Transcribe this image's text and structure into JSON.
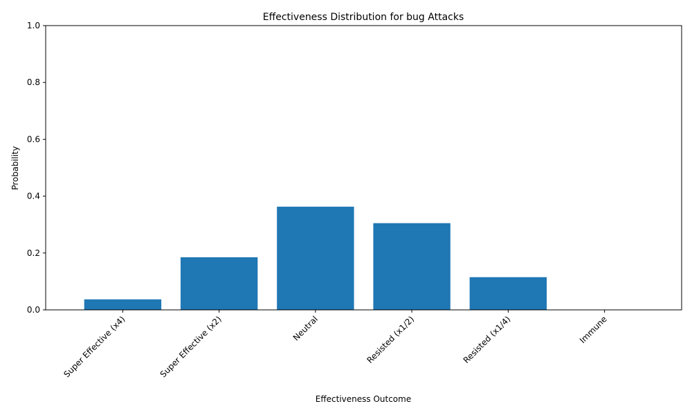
{
  "chart_data": {
    "type": "bar",
    "title": "Effectiveness Distribution for bug Attacks",
    "xlabel": "Effectiveness Outcome",
    "ylabel": "Probability",
    "categories": [
      "Super Effective (x4)",
      "Super Effective (x2)",
      "Neutral",
      "Resisted (x1/2)",
      "Resisted (x1/4)",
      "Immune"
    ],
    "values": [
      0.037,
      0.185,
      0.363,
      0.305,
      0.115,
      0.0
    ],
    "ylim": [
      0,
      1
    ],
    "yticks": [
      "0.0",
      "0.2",
      "0.4",
      "0.6",
      "0.8",
      "1.0"
    ],
    "bar_color": "#1f77b4",
    "grid": false,
    "legend": "none"
  }
}
